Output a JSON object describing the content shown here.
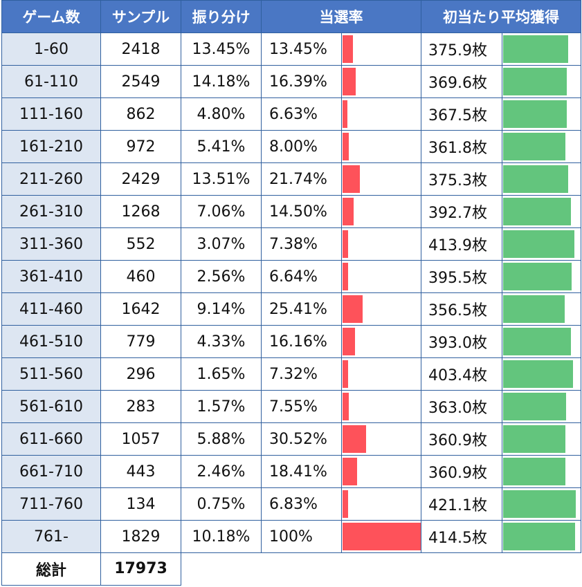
{
  "headers": {
    "games": "ゲーム数",
    "samples": "サンプル",
    "distribution": "振り分け",
    "win_rate": "当選率",
    "avg_payout": "初当たり平均獲得"
  },
  "rows": [
    {
      "range": "1-60",
      "samples": "2418",
      "distribution": "13.45%",
      "win_rate": "13.45%",
      "win_rate_value": 13.45,
      "payout": "375.9枚",
      "payout_value": 375.9
    },
    {
      "range": "61-110",
      "samples": "2549",
      "distribution": "14.18%",
      "win_rate": "16.39%",
      "win_rate_value": 16.39,
      "payout": "369.6枚",
      "payout_value": 369.6
    },
    {
      "range": "111-160",
      "samples": "862",
      "distribution": "4.80%",
      "win_rate": "6.63%",
      "win_rate_value": 6.63,
      "payout": "367.5枚",
      "payout_value": 367.5
    },
    {
      "range": "161-210",
      "samples": "972",
      "distribution": "5.41%",
      "win_rate": "8.00%",
      "win_rate_value": 8.0,
      "payout": "361.8枚",
      "payout_value": 361.8
    },
    {
      "range": "211-260",
      "samples": "2429",
      "distribution": "13.51%",
      "win_rate": "21.74%",
      "win_rate_value": 21.74,
      "payout": "375.3枚",
      "payout_value": 375.3
    },
    {
      "range": "261-310",
      "samples": "1268",
      "distribution": "7.06%",
      "win_rate": "14.50%",
      "win_rate_value": 14.5,
      "payout": "392.7枚",
      "payout_value": 392.7
    },
    {
      "range": "311-360",
      "samples": "552",
      "distribution": "3.07%",
      "win_rate": "7.38%",
      "win_rate_value": 7.38,
      "payout": "413.9枚",
      "payout_value": 413.9
    },
    {
      "range": "361-410",
      "samples": "460",
      "distribution": "2.56%",
      "win_rate": "6.64%",
      "win_rate_value": 6.64,
      "payout": "395.5枚",
      "payout_value": 395.5
    },
    {
      "range": "411-460",
      "samples": "1642",
      "distribution": "9.14%",
      "win_rate": "25.41%",
      "win_rate_value": 25.41,
      "payout": "356.5枚",
      "payout_value": 356.5
    },
    {
      "range": "461-510",
      "samples": "779",
      "distribution": "4.33%",
      "win_rate": "16.16%",
      "win_rate_value": 16.16,
      "payout": "393.0枚",
      "payout_value": 393.0
    },
    {
      "range": "511-560",
      "samples": "296",
      "distribution": "1.65%",
      "win_rate": "7.32%",
      "win_rate_value": 7.32,
      "payout": "403.4枚",
      "payout_value": 403.4
    },
    {
      "range": "561-610",
      "samples": "283",
      "distribution": "1.57%",
      "win_rate": "7.55%",
      "win_rate_value": 7.55,
      "payout": "363.0枚",
      "payout_value": 363.0
    },
    {
      "range": "611-660",
      "samples": "1057",
      "distribution": "5.88%",
      "win_rate": "30.52%",
      "win_rate_value": 30.52,
      "payout": "360.9枚",
      "payout_value": 360.9
    },
    {
      "range": "661-710",
      "samples": "443",
      "distribution": "2.46%",
      "win_rate": "18.41%",
      "win_rate_value": 18.41,
      "payout": "360.9枚",
      "payout_value": 360.9
    },
    {
      "range": "711-760",
      "samples": "134",
      "distribution": "0.75%",
      "win_rate": "6.83%",
      "win_rate_value": 6.83,
      "payout": "421.1枚",
      "payout_value": 421.1
    },
    {
      "range": "761-",
      "samples": "1829",
      "distribution": "10.18%",
      "win_rate": "100%",
      "win_rate_value": 100,
      "payout": "414.5枚",
      "payout_value": 414.5
    }
  ],
  "total": {
    "label": "総計",
    "value": "17973"
  },
  "colors": {
    "header_bg": "#4a77c4",
    "range_bg": "#dde6f2",
    "win_rate_bar": "#fe525a",
    "payout_bar": "#63c57d"
  }
}
